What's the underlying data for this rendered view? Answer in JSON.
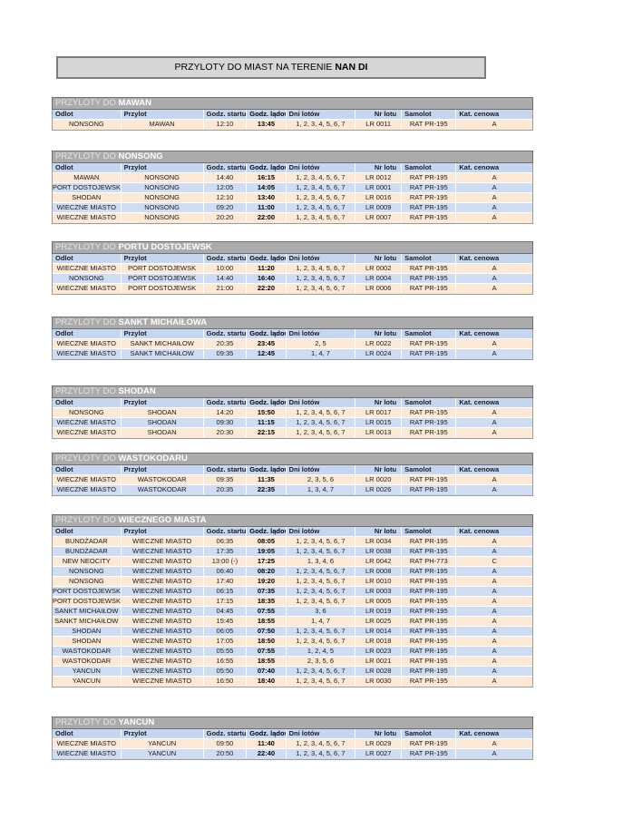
{
  "page_title": {
    "text": "PRZYLOTY DO MIAST NA TERENIE ",
    "emphasis": "NAN DI"
  },
  "table_title_prefix": "PRZYLOTY DO ",
  "columns": [
    "Odlot",
    "Przylot",
    "Godz. startu",
    "Godz. lądow.",
    "Dni lotów",
    "Nr lotu",
    "Samolot",
    "Kat. cenowa"
  ],
  "column_keys": [
    "odlot",
    "przylot",
    "godz-startu",
    "godz-ladow",
    "dni-lotow",
    "nr-lotu",
    "samolot",
    "kat-cenowa"
  ],
  "colors": {
    "row_cream": "#FBE9D5",
    "row_blue": "#CFDDF2",
    "header_blue": "#C5D6F0",
    "title_bar_gray": "#ABABAB",
    "top_bar_gray": "#D6D6D6"
  },
  "tables": [
    {
      "city": "MAWAN",
      "rows": [
        [
          "NONSONG",
          "MAWAN",
          "12:10",
          "13:45",
          "1, 2, 3, 4, 5, 6, 7",
          "LR 0011",
          "RAT PR-195",
          "A"
        ]
      ]
    },
    {
      "city": "NONSONG",
      "rows": [
        [
          "MAWAN",
          "NONSONG",
          "14:40",
          "16:15",
          "1, 2, 3, 4, 5, 6, 7",
          "LR 0012",
          "RAT PR-195",
          "A"
        ],
        [
          "PORT DOSTOJEWSK",
          "NONSONG",
          "12:05",
          "14:05",
          "1, 2, 3, 4, 5, 6, 7",
          "LR 0001",
          "RAT PR-195",
          "A"
        ],
        [
          "SHODAN",
          "NONSONG",
          "12:10",
          "13:40",
          "1, 2, 3, 4, 5, 6, 7",
          "LR 0016",
          "RAT PR-195",
          "A"
        ],
        [
          "WIECZNE MIASTO",
          "NONSONG",
          "09:20",
          "11:00",
          "1, 2, 3, 4, 5, 6, 7",
          "LR 0009",
          "RAT PR-195",
          "A"
        ],
        [
          "WIECZNE MIASTO",
          "NONSONG",
          "20:20",
          "22:00",
          "1, 2, 3, 4, 5, 6, 7",
          "LR 0007",
          "RAT PR-195",
          "A"
        ]
      ]
    },
    {
      "city": "PORTU DOSTOJEWSK",
      "rows": [
        [
          "WIECZNE MIASTO",
          "PORT DOSTOJEWSK",
          "10:00",
          "11:20",
          "1, 2, 3, 4, 5, 6, 7",
          "LR 0002",
          "RAT PR-195",
          "A"
        ],
        [
          "NONSONG",
          "PORT DOSTOJEWSK",
          "14:40",
          "16:40",
          "1, 2, 3, 4, 5, 6, 7",
          "LR 0004",
          "RAT PR-195",
          "A"
        ],
        [
          "WIECZNE MIASTO",
          "PORT DOSTOJEWSK",
          "21:00",
          "22:20",
          "1, 2, 3, 4, 5, 6, 7",
          "LR 0006",
          "RAT PR-195",
          "A"
        ]
      ]
    },
    {
      "city": "SANKT MICHAIŁOWA",
      "rows": [
        [
          "WIECZNE MIASTO",
          "SANKT MICHAIŁOW",
          "20:35",
          "23:45",
          "2, 5",
          "LR 0022",
          "RAT PR-195",
          "A"
        ],
        [
          "WIECZNE MIASTO",
          "SANKT MICHAIŁOW",
          "09:35",
          "12:45",
          "1, 4, 7",
          "LR 0024",
          "RAT PR-195",
          "A"
        ]
      ]
    },
    {
      "city": "SHODAN",
      "rows": [
        [
          "NONSONG",
          "SHODAN",
          "14:20",
          "15:50",
          "1, 2, 3, 4, 5, 6, 7",
          "LR 0017",
          "RAT PR-195",
          "A"
        ],
        [
          "WIECZNE MIASTO",
          "SHODAN",
          "09:30",
          "11:15",
          "1, 2, 3, 4, 5, 6, 7",
          "LR 0015",
          "RAT PR-195",
          "A"
        ],
        [
          "WIECZNE MIASTO",
          "SHODAN",
          "20:30",
          "22:15",
          "1, 2, 3, 4, 5, 6, 7",
          "LR 0013",
          "RAT PR-195",
          "A"
        ]
      ]
    },
    {
      "city": "WASTOKODARU",
      "rows": [
        [
          "WIECZNE MIASTO",
          "WASTOKODAR",
          "09:35",
          "11:35",
          "2, 3, 5, 6",
          "LR 0020",
          "RAT PR-195",
          "A"
        ],
        [
          "WIECZNE MIASTO",
          "WASTOKODAR",
          "20:35",
          "22:35",
          "1, 3, 4, 7",
          "LR 0026",
          "RAT PR-195",
          "A"
        ]
      ]
    },
    {
      "city": "WIECZNEGO MIASTA",
      "rows": [
        [
          "BUNDŻADAR",
          "WIECZNE MIASTO",
          "06:35",
          "08:05",
          "1, 2, 3, 4, 5, 6, 7",
          "LR 0034",
          "RAT PR-195",
          "A"
        ],
        [
          "BUNDŻADAR",
          "WIECZNE MIASTO",
          "17:35",
          "19:05",
          "1, 2, 3, 4, 5, 6, 7",
          "LR 0038",
          "RAT PR-195",
          "A"
        ],
        [
          "NEW NEOCITY",
          "WIECZNE MIASTO",
          "13:00 (-)",
          "17:25",
          "1, 3, 4, 6",
          "LR 0042",
          "RAT PH-773",
          "C"
        ],
        [
          "NONSONG",
          "WIECZNE MIASTO",
          "06:40",
          "08:20",
          "1, 2, 3, 4, 5, 6, 7",
          "LR 0008",
          "RAT PR-195",
          "A"
        ],
        [
          "NONSONG",
          "WIECZNE MIASTO",
          "17:40",
          "19:20",
          "1, 2, 3, 4, 5, 6, 7",
          "LR 0010",
          "RAT PR-195",
          "A"
        ],
        [
          "PORT DOSTOJEWSK",
          "WIECZNE MIASTO",
          "06:15",
          "07:35",
          "1, 2, 3, 4, 5, 6, 7",
          "LR 0003",
          "RAT PR-195",
          "A"
        ],
        [
          "PORT DOSTOJEWSK",
          "WIECZNE MIASTO",
          "17:15",
          "18:35",
          "1, 2, 3, 4, 5, 6, 7",
          "LR 0005",
          "RAT PR-195",
          "A"
        ],
        [
          "SANKT MICHAIŁOW",
          "WIECZNE MIASTO",
          "04:45",
          "07:55",
          "3, 6",
          "LR 0019",
          "RAT PR-195",
          "A"
        ],
        [
          "SANKT MICHAIŁOW",
          "WIECZNE MIASTO",
          "15:45",
          "18:55",
          "1, 4, 7",
          "LR 0025",
          "RAT PR-195",
          "A"
        ],
        [
          "SHODAN",
          "WIECZNE MIASTO",
          "06:05",
          "07:50",
          "1, 2, 3, 4, 5, 6, 7",
          "LR 0014",
          "RAT PR-195",
          "A"
        ],
        [
          "SHODAN",
          "WIECZNE MIASTO",
          "17:05",
          "18:50",
          "1, 2, 3, 4, 5, 6, 7",
          "LR 0018",
          "RAT PR-195",
          "A"
        ],
        [
          "WASTOKODAR",
          "WIECZNE MIASTO",
          "05:55",
          "07:55",
          "1, 2, 4, 5",
          "LR 0023",
          "RAT PR-195",
          "A"
        ],
        [
          "WASTOKODAR",
          "WIECZNE MIASTO",
          "16:55",
          "18:55",
          "2, 3, 5, 6",
          "LR 0021",
          "RAT PR-195",
          "A"
        ],
        [
          "YANCUN",
          "WIECZNE MIASTO",
          "05:50",
          "07:40",
          "1, 2, 3, 4, 5, 6, 7",
          "LR 0028",
          "RAT PR-195",
          "A"
        ],
        [
          "YANCUN",
          "WIECZNE MIASTO",
          "16:50",
          "18:40",
          "1, 2, 3, 4, 5, 6, 7",
          "LR 0030",
          "RAT PR-195",
          "A"
        ]
      ]
    },
    {
      "city": "YANCUN",
      "rows": [
        [
          "WIECZNE MIASTO",
          "YANCUN",
          "09:50",
          "11:40",
          "1, 2, 3, 4, 5, 6, 7",
          "LR 0029",
          "RAT PR-195",
          "A"
        ],
        [
          "WIECZNE MIASTO",
          "YANCUN",
          "20:50",
          "22:40",
          "1, 2, 3, 4, 5, 6, 7",
          "LR 0027",
          "RAT PR-195",
          "A"
        ]
      ]
    }
  ]
}
